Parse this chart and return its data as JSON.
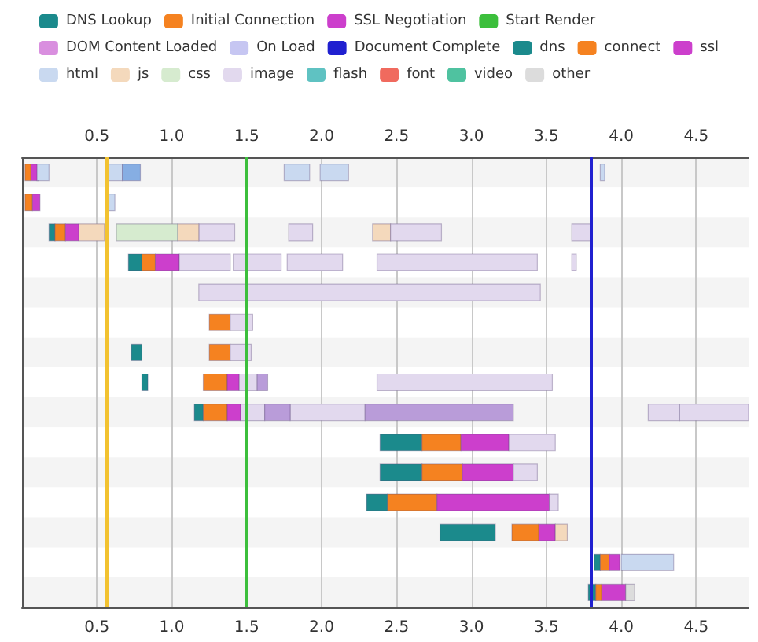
{
  "chart_data": {
    "type": "bar",
    "orientation": "horizontal",
    "categories": [
      null,
      null,
      null,
      null,
      null,
      null,
      null,
      null,
      null,
      null,
      null,
      null,
      null,
      null,
      null
    ],
    "xlim": [
      0,
      4.85
    ],
    "xticks": [
      0.5,
      {
        "value": 1,
        "label": "1.0"
      },
      1.5,
      {
        "value": 2,
        "label": "2.0"
      },
      2.5,
      {
        "value": 3,
        "label": "3.0"
      },
      3.5,
      {
        "value": 4,
        "label": "4.0"
      },
      4.5
    ],
    "x2lim": [
      0,
      4.85
    ],
    "x2ticks": [
      0.5,
      {
        "value": 1,
        "label": "1.0"
      },
      1.5,
      {
        "value": 2,
        "label": "2.0"
      },
      2.5,
      {
        "value": 3,
        "label": "3.0"
      },
      3.5,
      {
        "value": 4,
        "label": "4.0"
      },
      4.5
    ],
    "grid": "x",
    "legend": "top",
    "ref_lines": [
      {
        "axis": "x",
        "value": 0.56,
        "color": "#f2c230"
      },
      {
        "axis": "x",
        "value": 1.5,
        "label": "Start Render",
        "color": "#3cbf3c"
      },
      {
        "axis": "x",
        "value": 3.8,
        "label": "Document Complete",
        "color": "#2020d0"
      }
    ],
    "series": [
      {
        "name": "DNS Lookup",
        "color": "#1b8a8c",
        "values": [
          null,
          null,
          0.04,
          0.09,
          null,
          null,
          0.07,
          0.04,
          0.06,
          0.28,
          0.28,
          0.14,
          0.37,
          0.04,
          0.05
        ],
        "base": [
          null,
          null,
          0.18,
          0.71,
          null,
          null,
          0.73,
          0.8,
          1.15,
          2.39,
          2.39,
          2.3,
          2.79,
          3.82,
          3.78
        ]
      },
      {
        "name": "Initial Connection",
        "color": "#f58220",
        "values": [
          0.04,
          0.05,
          0.07,
          0.09,
          null,
          0.14,
          0.14,
          0.16,
          0.16,
          0.26,
          0.27,
          0.33,
          0.18,
          0.06,
          0.04
        ],
        "base": [
          0.02,
          0.02,
          0.22,
          0.8,
          null,
          1.25,
          1.25,
          1.21,
          1.21,
          2.67,
          2.67,
          2.44,
          3.27,
          3.86,
          3.83
        ]
      },
      {
        "name": "SSL Negotiation",
        "color": "#cc3fcc",
        "values": [
          0.05,
          0.05,
          0.09,
          0.16,
          null,
          null,
          null,
          0.08,
          0.09,
          0.32,
          0.34,
          0.75,
          0.11,
          0.07,
          0.16
        ],
        "base": [
          0.06,
          0.07,
          0.29,
          0.89,
          null,
          null,
          null,
          1.37,
          1.37,
          2.93,
          2.94,
          2.77,
          3.45,
          3.92,
          3.87
        ]
      },
      {
        "name": "DOM Content Loaded",
        "color": "#d98fdf",
        "values": [
          null,
          null,
          null,
          null,
          null,
          null,
          null,
          null,
          null,
          null,
          null,
          null,
          null,
          null,
          null
        ]
      },
      {
        "name": "On Load",
        "color": "#c6c6f2",
        "values": [
          null,
          null,
          null,
          null,
          null,
          null,
          null,
          null,
          null,
          null,
          null,
          null,
          null,
          null,
          null
        ]
      },
      {
        "name": "dns",
        "color": "#1b8a8c",
        "values": [
          null,
          null,
          null,
          null,
          null,
          null,
          null,
          null,
          null,
          null,
          null,
          null,
          null,
          null,
          null
        ]
      },
      {
        "name": "connect",
        "color": "#f58220",
        "values": [
          null,
          null,
          null,
          null,
          null,
          null,
          null,
          null,
          null,
          null,
          null,
          null,
          null,
          null,
          null
        ]
      },
      {
        "name": "ssl",
        "color": "#cc3fcc",
        "values": [
          null,
          null,
          null,
          null,
          null,
          null,
          null,
          null,
          null,
          null,
          null,
          null,
          null,
          null,
          null
        ]
      },
      {
        "name": "html",
        "color": "#c9d9f0",
        "values": [
          0.08,
          0.05,
          null,
          null,
          null,
          null,
          null,
          null,
          null,
          null,
          null,
          null,
          null,
          0.35,
          null
        ],
        "base": [
          0.1,
          0.57,
          null,
          null,
          null,
          null,
          null,
          null,
          null,
          null,
          null,
          null,
          null,
          4,
          null
        ]
      },
      {
        "name": "js",
        "color": "#f4d9bc",
        "values": [
          null,
          null,
          0.17,
          null,
          null,
          null,
          null,
          null,
          null,
          null,
          null,
          null,
          0.08,
          null,
          null
        ],
        "base": [
          null,
          null,
          0.38,
          null,
          null,
          null,
          null,
          null,
          null,
          null,
          null,
          null,
          3.56,
          null,
          null
        ]
      },
      {
        "name": "css",
        "color": "#d6ebcf",
        "values": [
          null,
          null,
          0.41,
          null,
          null,
          null,
          null,
          null,
          null,
          null,
          null,
          null,
          null,
          null,
          null
        ],
        "base": [
          null,
          null,
          0.63,
          null,
          null,
          null,
          null,
          null,
          null,
          null,
          null,
          null,
          null,
          null,
          null
        ]
      },
      {
        "name": "image",
        "color": "#e2d9ee",
        "values": [
          null,
          null,
          0.24,
          0.34,
          2.28,
          0.15,
          0.14,
          0.12,
          0.16,
          0.31,
          0.16,
          0.06,
          null,
          null,
          null
        ],
        "base": [
          null,
          null,
          1.18,
          1.05,
          1.18,
          1.39,
          1.39,
          1.45,
          1.46,
          3.25,
          3.28,
          3.52,
          null,
          null,
          null
        ]
      },
      {
        "name": "flash",
        "color": "#5fc2c2",
        "values": [
          null,
          null,
          null,
          null,
          null,
          null,
          null,
          null,
          null,
          null,
          null,
          null,
          null,
          null,
          null
        ]
      },
      {
        "name": "font",
        "color": "#f06a5e",
        "values": [
          null,
          null,
          null,
          null,
          null,
          null,
          null,
          null,
          null,
          null,
          null,
          null,
          null,
          null,
          null
        ]
      },
      {
        "name": "video",
        "color": "#4fc2a0",
        "values": [
          null,
          null,
          null,
          null,
          null,
          null,
          null,
          null,
          null,
          null,
          null,
          null,
          null,
          null,
          null
        ]
      },
      {
        "name": "other",
        "color": "#dcdcdc",
        "values": [
          null,
          null,
          null,
          null,
          null,
          null,
          null,
          null,
          null,
          null,
          null,
          null,
          null,
          null,
          0.06
        ],
        "base": [
          null,
          null,
          null,
          null,
          null,
          null,
          null,
          null,
          null,
          null,
          null,
          null,
          null,
          null,
          4.03
        ]
      },
      {
        "color": "#c9d9f0",
        "values": [
          0.11,
          null,
          null,
          null,
          null,
          null,
          null,
          null,
          null,
          null,
          null,
          null,
          null,
          null,
          null
        ],
        "base": [
          0.56,
          null,
          null,
          null,
          null,
          null,
          null,
          null,
          null,
          null,
          null,
          null,
          null,
          null,
          null
        ]
      },
      {
        "color": "#c9d9f0",
        "values": [
          0.17,
          null,
          null,
          null,
          null,
          null,
          null,
          null,
          null,
          null,
          null,
          null,
          null,
          null,
          null
        ],
        "base": [
          1.75,
          null,
          null,
          null,
          null,
          null,
          null,
          null,
          null,
          null,
          null,
          null,
          null,
          null,
          null
        ]
      },
      {
        "color": "#c9d9f0",
        "values": [
          0.19,
          null,
          null,
          null,
          null,
          null,
          null,
          null,
          null,
          null,
          null,
          null,
          null,
          null,
          null
        ],
        "base": [
          1.99,
          null,
          null,
          null,
          null,
          null,
          null,
          null,
          null,
          null,
          null,
          null,
          null,
          null,
          null
        ]
      },
      {
        "color": "#c9d9f0",
        "values": [
          0.03,
          null,
          null,
          null,
          null,
          null,
          null,
          null,
          null,
          null,
          null,
          null,
          null,
          null,
          null
        ],
        "base": [
          3.86,
          null,
          null,
          null,
          null,
          null,
          null,
          null,
          null,
          null,
          null,
          null,
          null,
          null,
          null
        ]
      },
      {
        "color": "#86aee3",
        "values": [
          0.12,
          null,
          null,
          null,
          null,
          null,
          null,
          null,
          null,
          null,
          null,
          null,
          null,
          null,
          null
        ],
        "base": [
          0.67,
          null,
          null,
          null,
          null,
          null,
          null,
          null,
          null,
          null,
          null,
          null,
          null,
          null,
          null
        ]
      },
      {
        "color": "#f4d9bc",
        "values": [
          null,
          null,
          0.14,
          null,
          null,
          null,
          null,
          null,
          null,
          null,
          null,
          null,
          null,
          null,
          null
        ],
        "base": [
          null,
          null,
          1.04,
          null,
          null,
          null,
          null,
          null,
          null,
          null,
          null,
          null,
          null,
          null,
          null
        ]
      },
      {
        "color": "#f4d9bc",
        "values": [
          null,
          null,
          0.12,
          null,
          null,
          null,
          null,
          null,
          null,
          null,
          null,
          null,
          null,
          null,
          null
        ],
        "base": [
          null,
          null,
          2.34,
          null,
          null,
          null,
          null,
          null,
          null,
          null,
          null,
          null,
          null,
          null,
          null
        ]
      },
      {
        "color": "#e2d9ee",
        "values": [
          null,
          null,
          0.16,
          0.32,
          null,
          null,
          null,
          1.17,
          0.5,
          null,
          null,
          null,
          null,
          null,
          null
        ],
        "base": [
          null,
          null,
          1.78,
          1.41,
          null,
          null,
          null,
          2.37,
          1.79,
          null,
          null,
          null,
          null,
          null,
          null
        ]
      },
      {
        "color": "#e2d9ee",
        "values": [
          null,
          null,
          0.34,
          0.37,
          null,
          null,
          null,
          null,
          0.21,
          null,
          null,
          null,
          null,
          null,
          null
        ],
        "base": [
          null,
          null,
          2.46,
          1.77,
          null,
          null,
          null,
          null,
          4.18,
          null,
          null,
          null,
          null,
          null,
          null
        ]
      },
      {
        "color": "#e2d9ee",
        "values": [
          null,
          null,
          0.13,
          1.07,
          null,
          null,
          null,
          null,
          0.46,
          null,
          null,
          null,
          null,
          null,
          null
        ],
        "base": [
          null,
          null,
          3.67,
          2.37,
          null,
          null,
          null,
          null,
          4.39,
          null,
          null,
          null,
          null,
          null,
          null
        ]
      },
      {
        "color": "#e2d9ee",
        "values": [
          null,
          null,
          null,
          0.03,
          null,
          null,
          null,
          null,
          null,
          null,
          null,
          null,
          null,
          null,
          null
        ],
        "base": [
          null,
          null,
          null,
          3.67,
          null,
          null,
          null,
          null,
          null,
          null,
          null,
          null,
          null,
          null,
          null
        ]
      },
      {
        "color": "#b99cd9",
        "values": [
          null,
          null,
          null,
          null,
          null,
          null,
          null,
          0.07,
          0.17,
          null,
          null,
          null,
          null,
          null,
          null
        ],
        "base": [
          null,
          null,
          null,
          null,
          null,
          null,
          null,
          1.57,
          1.62,
          null,
          null,
          null,
          null,
          null,
          null
        ]
      },
      {
        "color": "#b99cd9",
        "values": [
          null,
          null,
          null,
          null,
          null,
          null,
          null,
          null,
          0.99,
          null,
          null,
          null,
          null,
          null,
          null
        ],
        "base": [
          null,
          null,
          null,
          null,
          null,
          null,
          null,
          null,
          2.29,
          null,
          null,
          null,
          null,
          null,
          null
        ]
      }
    ]
  }
}
